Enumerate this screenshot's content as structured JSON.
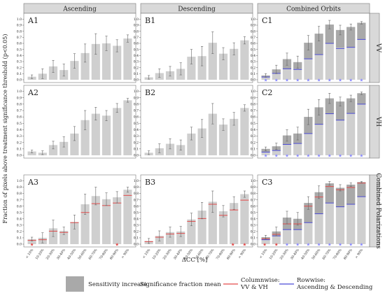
{
  "figure": {
    "ylabel": "Fraction of pixels above treatment significance threshold (p<0.05)",
    "xlabel": "ΔCC [%]",
    "columns": [
      "Ascending",
      "Descending",
      "Combined Orbits"
    ],
    "rows": [
      "VV",
      "VH",
      "Combined Polarizations"
    ],
    "yticks": [
      "0.0",
      "0.1",
      "0.2",
      "0.3",
      "0.4",
      "0.5",
      "0.6",
      "0.7",
      "0.8",
      "0.9",
      "1.0"
    ],
    "legend": {
      "sensitivity": "Sensitivity increase",
      "mean": "Significance fraction mean",
      "columnwise": "Columnwise:\nVV & VH",
      "rowwise": "Rowwise:\nAscending & Descending"
    }
  },
  "colors": {
    "bar": "#cfcfcf",
    "increase": "#a9a9a9",
    "strip": "#d9d9d9",
    "err": "#666666",
    "red": "#e34a4a",
    "blue": "#4a4ad6",
    "star_blue": "#8c8cff",
    "star_red": "#e34a4a"
  },
  "chart_data": {
    "type": "bar",
    "categories": [
      "< 10%",
      "10-20%",
      "20-30%",
      "30-40%",
      "40-50%",
      "50-60%",
      "60-70%",
      "70-80%",
      "80-90%",
      "> 90%"
    ],
    "ylim": [
      0,
      1.05
    ],
    "panels": [
      {
        "label": "A1",
        "values": [
          0.05,
          0.1,
          0.22,
          0.16,
          0.31,
          0.44,
          0.59,
          0.6,
          0.56,
          0.68
        ],
        "err": [
          0.03,
          0.08,
          0.1,
          0.1,
          0.12,
          0.15,
          0.17,
          0.12,
          0.1,
          0.06
        ]
      },
      {
        "label": "B1",
        "values": [
          0.04,
          0.11,
          0.14,
          0.18,
          0.38,
          0.39,
          0.61,
          0.43,
          0.51,
          0.65
        ],
        "err": [
          0.03,
          0.07,
          0.08,
          0.1,
          0.12,
          0.16,
          0.18,
          0.1,
          0.1,
          0.06
        ]
      },
      {
        "label": "C1",
        "values": [
          0.07,
          0.17,
          0.34,
          0.29,
          0.61,
          0.76,
          0.91,
          0.82,
          0.87,
          0.94
        ],
        "increase": [
          0.03,
          0.06,
          0.16,
          0.11,
          0.26,
          0.34,
          0.31,
          0.29,
          0.33,
          0.27
        ],
        "rowmean": [
          0.045,
          0.105,
          0.18,
          0.17,
          0.345,
          0.415,
          0.6,
          0.515,
          0.535,
          0.665
        ],
        "err": [
          0.03,
          0.07,
          0.1,
          0.1,
          0.12,
          0.12,
          0.07,
          0.08,
          0.05,
          0.02
        ],
        "stars_blue": [
          0,
          1,
          2,
          3,
          4,
          5,
          6,
          7,
          8,
          9
        ],
        "stars_red": []
      },
      {
        "label": "A2",
        "values": [
          0.06,
          0.04,
          0.16,
          0.21,
          0.34,
          0.55,
          0.65,
          0.62,
          0.74,
          0.86
        ],
        "err": [
          0.02,
          0.03,
          0.06,
          0.08,
          0.11,
          0.15,
          0.1,
          0.08,
          0.07,
          0.03
        ]
      },
      {
        "label": "B2",
        "values": [
          0.04,
          0.11,
          0.18,
          0.16,
          0.34,
          0.42,
          0.65,
          0.48,
          0.57,
          0.74
        ],
        "err": [
          0.03,
          0.07,
          0.08,
          0.08,
          0.1,
          0.14,
          0.16,
          0.09,
          0.1,
          0.05
        ]
      },
      {
        "label": "C2",
        "values": [
          0.1,
          0.14,
          0.31,
          0.34,
          0.6,
          0.75,
          0.89,
          0.84,
          0.89,
          0.97
        ],
        "increase": [
          0.05,
          0.06,
          0.14,
          0.15,
          0.26,
          0.27,
          0.24,
          0.29,
          0.23,
          0.17
        ],
        "rowmean": [
          0.05,
          0.075,
          0.17,
          0.185,
          0.34,
          0.485,
          0.65,
          0.55,
          0.655,
          0.8
        ],
        "err": [
          0.03,
          0.05,
          0.09,
          0.1,
          0.12,
          0.12,
          0.08,
          0.07,
          0.05,
          0.02
        ],
        "stars_blue": [
          0,
          1,
          2,
          3,
          4,
          5,
          6,
          7,
          8,
          9
        ],
        "stars_red": []
      },
      {
        "label": "A3",
        "values": [
          0.08,
          0.1,
          0.25,
          0.21,
          0.35,
          0.63,
          0.76,
          0.71,
          0.74,
          0.86
        ],
        "colmean": [
          0.06,
          0.07,
          0.205,
          0.185,
          0.34,
          0.5,
          0.64,
          0.61,
          0.65,
          0.77
        ],
        "err": [
          0.03,
          0.08,
          0.13,
          0.06,
          0.11,
          0.16,
          0.14,
          0.1,
          0.09,
          0.04
        ],
        "stars_blue": [],
        "stars_red": [
          0,
          8
        ]
      },
      {
        "label": "B3",
        "values": [
          0.05,
          0.13,
          0.19,
          0.2,
          0.39,
          0.53,
          0.67,
          0.52,
          0.65,
          0.79
        ],
        "colmean": [
          0.04,
          0.11,
          0.16,
          0.17,
          0.36,
          0.405,
          0.63,
          0.455,
          0.54,
          0.695
        ],
        "err": [
          0.04,
          0.08,
          0.08,
          0.08,
          0.1,
          0.13,
          0.17,
          0.09,
          0.1,
          0.05
        ],
        "stars_blue": [],
        "stars_red": [
          8,
          9
        ]
      },
      {
        "label": "C3",
        "values": [
          0.11,
          0.2,
          0.42,
          0.4,
          0.65,
          0.82,
          0.96,
          0.89,
          0.94,
          0.98
        ],
        "increase": [
          0.04,
          0.07,
          0.19,
          0.17,
          0.31,
          0.34,
          0.31,
          0.3,
          0.31,
          0.23
        ],
        "colmean": [
          0.085,
          0.155,
          0.32,
          0.32,
          0.6,
          0.745,
          0.91,
          0.86,
          0.895,
          0.965
        ],
        "rowmean": [
          0.07,
          0.13,
          0.23,
          0.23,
          0.34,
          0.48,
          0.65,
          0.59,
          0.63,
          0.75
        ],
        "err": [
          0.03,
          0.07,
          0.1,
          0.1,
          0.1,
          0.1,
          0.03,
          0.05,
          0.03,
          0.01
        ],
        "stars_blue": [
          2,
          3,
          4,
          5,
          6,
          7,
          8,
          9
        ],
        "stars_red": [
          0,
          1
        ]
      }
    ]
  }
}
